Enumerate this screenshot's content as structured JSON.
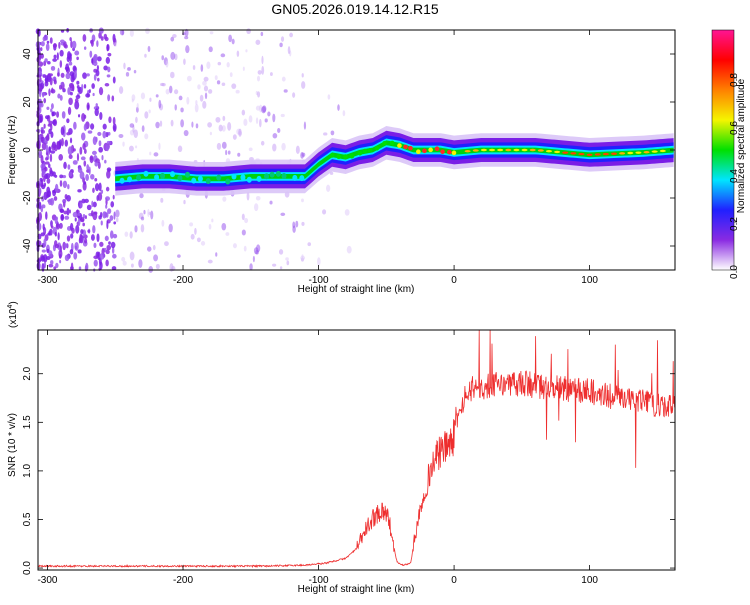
{
  "title": "GN05.2026.019.14.12.R15",
  "chart_data": [
    {
      "type": "heatmap",
      "xlabel": "Height of straight line (km)",
      "ylabel": "Frequency (Hz)",
      "xlim": [
        -307,
        163
      ],
      "ylim": [
        -50,
        50
      ],
      "xticks": [
        -300,
        -200,
        -100,
        0,
        100
      ],
      "yticks": [
        -40,
        -20,
        0,
        20,
        40
      ],
      "colorbar": {
        "label": "Normalized spectral amplitude",
        "range": [
          0.0,
          1.0
        ],
        "ticks": [
          "0.0",
          "0.2",
          "0.4",
          "0.6",
          "0.8"
        ],
        "tick_values": [
          0,
          0.2,
          0.4,
          0.6,
          0.8
        ],
        "colors": [
          "#ffffff",
          "#8a2be2",
          "#2020ff",
          "#00e5ff",
          "#00e000",
          "#f5f500",
          "#ff8000",
          "#ff0000",
          "#ff1493"
        ]
      },
      "ridge": {
        "x": [
          -250,
          -230,
          -210,
          -190,
          -170,
          -150,
          -130,
          -110,
          -100,
          -90,
          -80,
          -70,
          -60,
          -50,
          -40,
          -30,
          -20,
          -10,
          0,
          20,
          60,
          100,
          140,
          163
        ],
        "y": [
          -12,
          -11,
          -11,
          -12,
          -12,
          -11,
          -11,
          -11,
          -6,
          -2,
          -3,
          -1,
          0,
          3,
          2,
          0,
          0,
          0,
          -1,
          0,
          0,
          -2,
          -1,
          0
        ]
      }
    },
    {
      "type": "line",
      "xlabel": "Height of straight line (km)",
      "ylabel": "SNR (10 * v/v)",
      "y_multiplier": "(x10^4)",
      "y_multiplier_base": "(x10",
      "y_multiplier_exp": "4",
      "y_multiplier_close": ")",
      "xlim": [
        -307,
        163
      ],
      "ylim": [
        -0.02,
        2.45
      ],
      "xticks": [
        -300,
        -200,
        -100,
        0,
        100
      ],
      "yticks": [
        0.0,
        0.5,
        1.0,
        1.5,
        2.0
      ],
      "ytick_labels": [
        "0.0",
        "0.5",
        "1.0",
        "1.5",
        "2.0"
      ],
      "color": "#ee2e2e",
      "envelope": {
        "x": [
          -307,
          -250,
          -200,
          -140,
          -110,
          -95,
          -80,
          -72,
          -65,
          -58,
          -52,
          -48,
          -45,
          -42,
          -38,
          -32,
          -28,
          -22,
          -15,
          -10,
          -5,
          0,
          3,
          8,
          13,
          20,
          30,
          40,
          50,
          60,
          80,
          100,
          120,
          140,
          150,
          163
        ],
        "y": [
          0.02,
          0.02,
          0.02,
          0.02,
          0.03,
          0.05,
          0.1,
          0.2,
          0.4,
          0.55,
          0.6,
          0.5,
          0.25,
          0.06,
          0.03,
          0.05,
          0.4,
          0.8,
          1.1,
          1.2,
          1.25,
          1.35,
          1.6,
          1.75,
          1.85,
          1.85,
          1.88,
          1.9,
          1.9,
          1.88,
          1.85,
          1.82,
          1.75,
          1.72,
          1.68,
          1.65
        ]
      }
    }
  ]
}
